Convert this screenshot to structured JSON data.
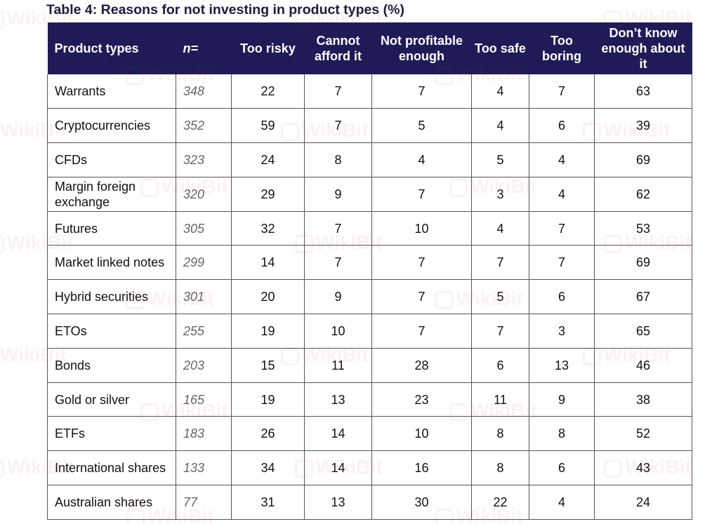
{
  "title": "Table 4: Reasons for not investing in product types (%)",
  "headers": [
    "Product types",
    "n=",
    "Too risky",
    "Cannot afford it",
    "Not profitable enough",
    "Too safe",
    "Too boring",
    "Don’t know enough about it"
  ],
  "rows": [
    [
      "Warrants",
      "348",
      "22",
      "7",
      "7",
      "4",
      "7",
      "63"
    ],
    [
      "Cryptocurrencies",
      "352",
      "59",
      "7",
      "5",
      "4",
      "6",
      "39"
    ],
    [
      "CFDs",
      "323",
      "24",
      "8",
      "4",
      "5",
      "4",
      "69"
    ],
    [
      "Margin foreign exchange",
      "320",
      "29",
      "9",
      "7",
      "3",
      "4",
      "62"
    ],
    [
      "Futures",
      "305",
      "32",
      "7",
      "10",
      "4",
      "7",
      "53"
    ],
    [
      "Market linked notes",
      "299",
      "14",
      "7",
      "7",
      "7",
      "7",
      "69"
    ],
    [
      "Hybrid securities",
      "301",
      "20",
      "9",
      "7",
      "5",
      "6",
      "67"
    ],
    [
      "ETOs",
      "255",
      "19",
      "10",
      "7",
      "7",
      "3",
      "65"
    ],
    [
      "Bonds",
      "203",
      "15",
      "11",
      "28",
      "6",
      "13",
      "46"
    ],
    [
      "Gold or silver",
      "165",
      "19",
      "13",
      "23",
      "11",
      "9",
      "38"
    ],
    [
      "ETFs",
      "183",
      "26",
      "14",
      "10",
      "8",
      "8",
      "52"
    ],
    [
      "International shares",
      "133",
      "34",
      "14",
      "16",
      "8",
      "6",
      "43"
    ],
    [
      "Australian shares",
      "77",
      "31",
      "13",
      "30",
      "22",
      "4",
      "24"
    ]
  ],
  "watermark": {
    "text": "WikiBit",
    "icon": "wikibit-logo-icon"
  },
  "colors": {
    "header_bg": "#1e1b56",
    "header_text": "#ffffff",
    "n_text": "#666666",
    "border": "#555555"
  }
}
